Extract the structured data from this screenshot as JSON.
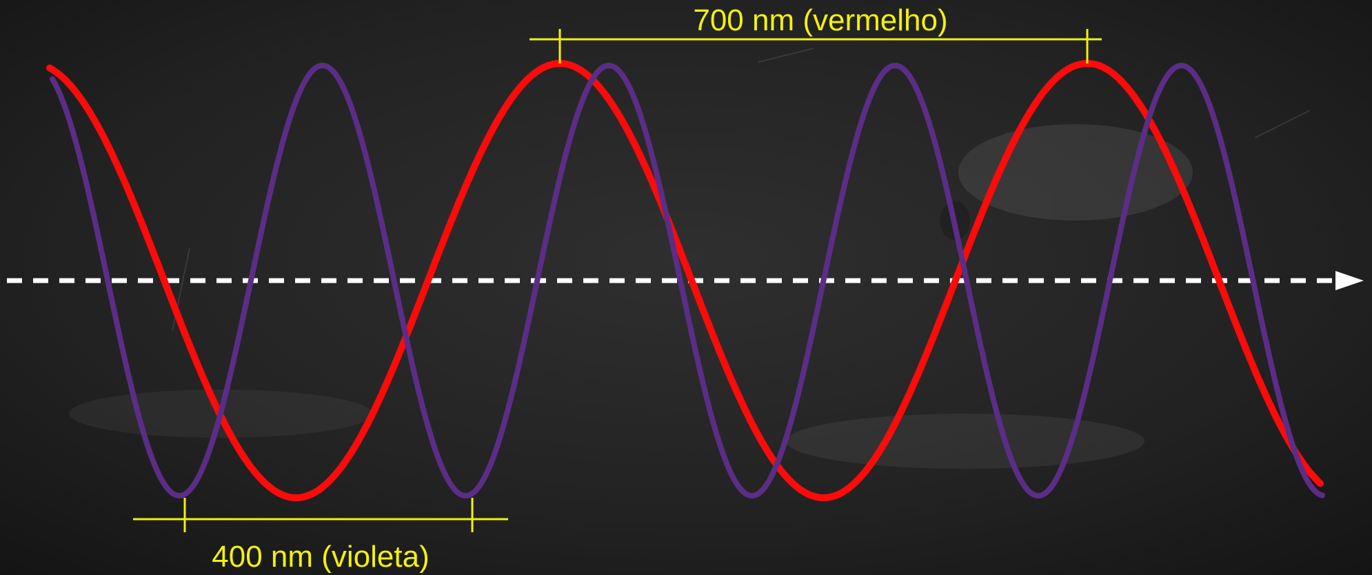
{
  "diagram": {
    "background_color": "#1b1b1b",
    "annotation_color": "#f2f20a",
    "axis_color": "#ffffff",
    "axis_style": "dashed",
    "axis_arrow": "arrow-icon",
    "waves": [
      {
        "id": "red",
        "color": "#ff0a0a",
        "wavelength_label": "700 nm (vermelho)",
        "relative_wavelength": 700
      },
      {
        "id": "violet",
        "color": "#5b2d86",
        "wavelength_label": "400 nm (violeta)",
        "relative_wavelength": 400
      }
    ]
  }
}
